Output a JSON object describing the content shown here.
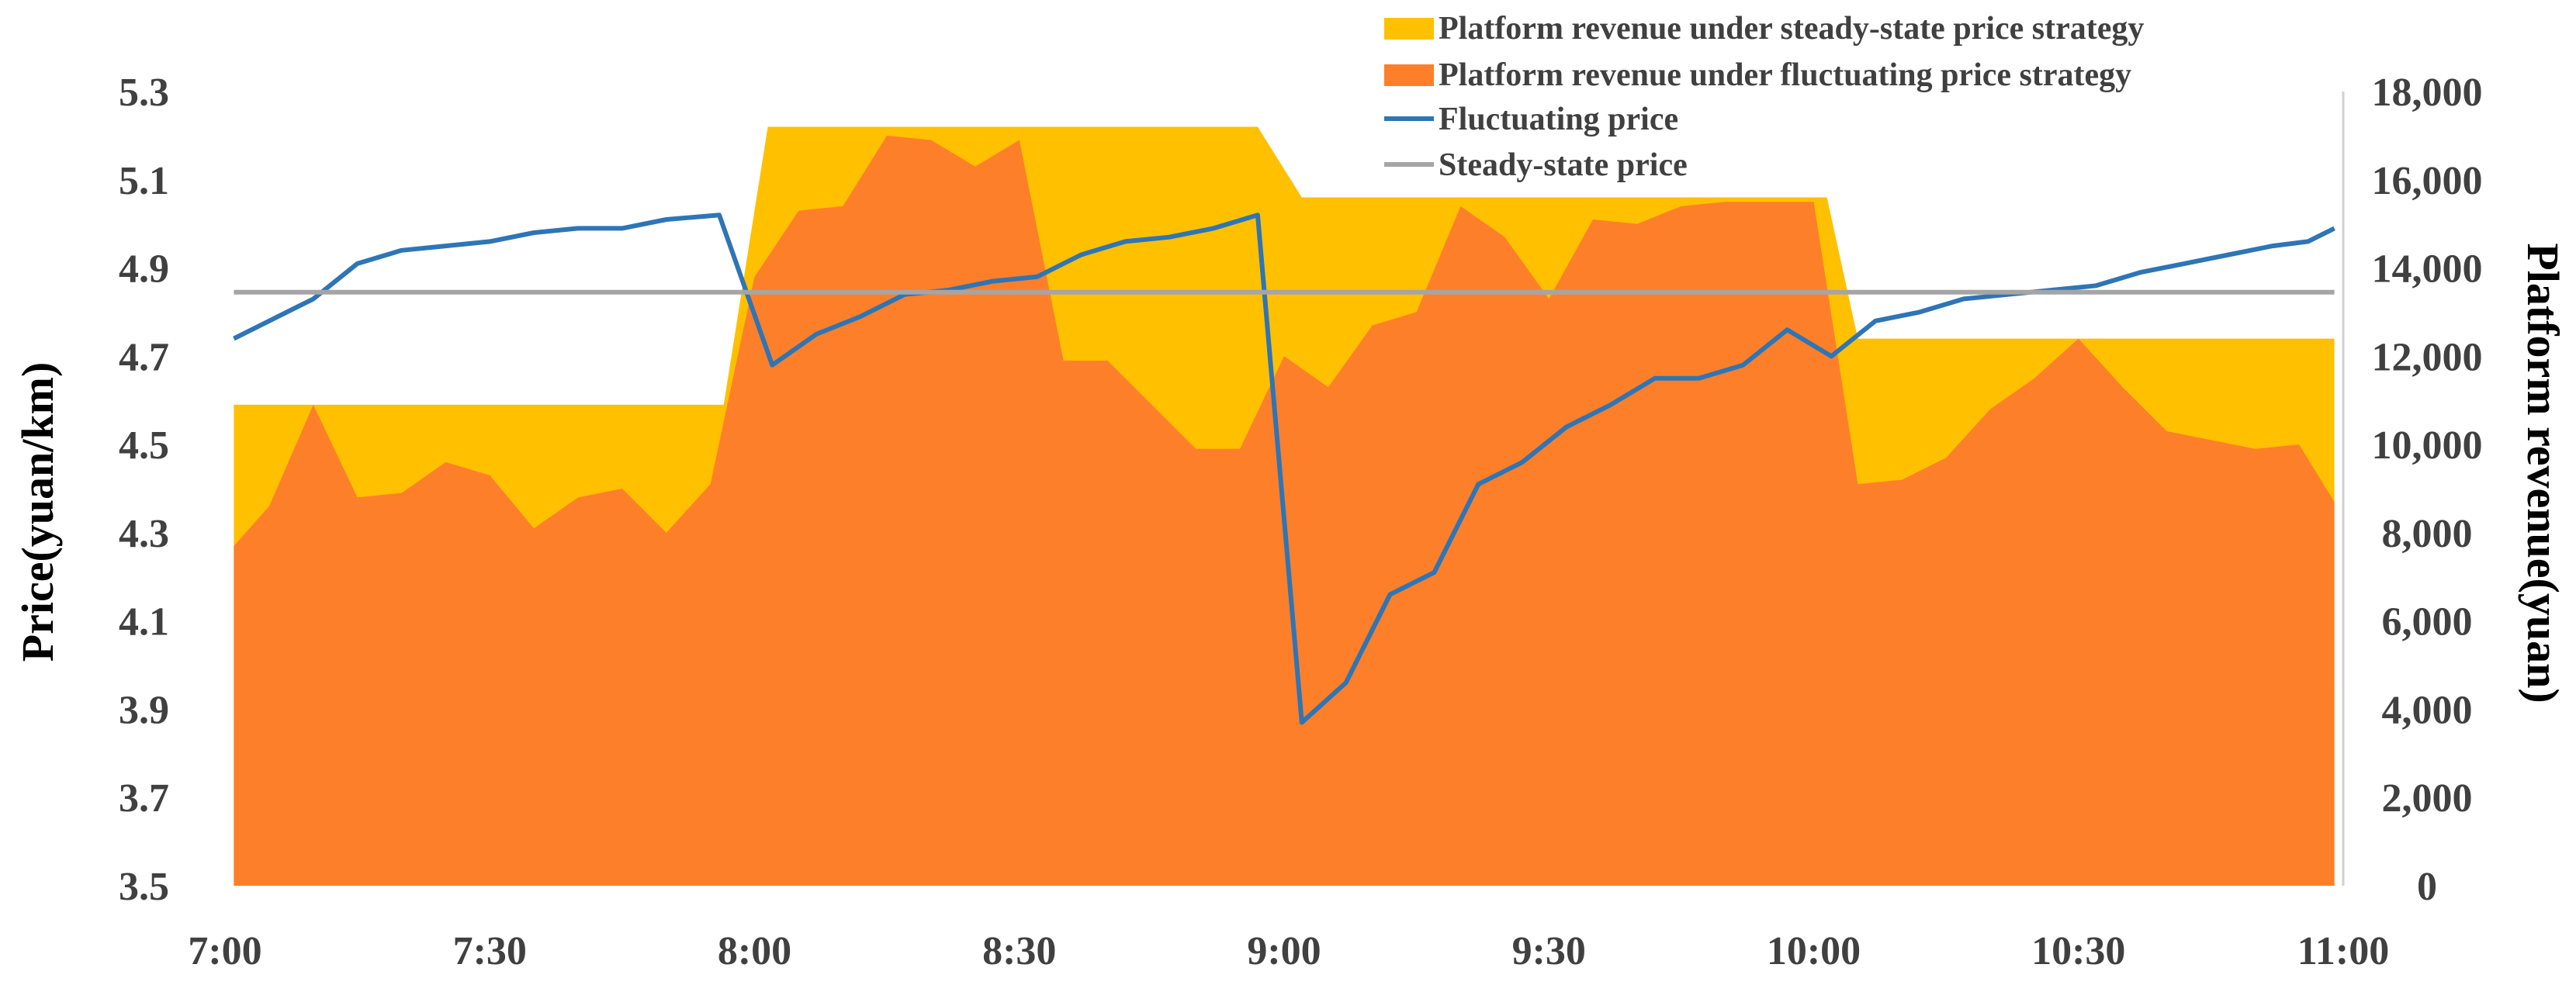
{
  "chart_data": {
    "type": "area",
    "title": "",
    "x": [
      "7:00",
      "7:05",
      "7:10",
      "7:15",
      "7:20",
      "7:25",
      "7:30",
      "7:35",
      "7:40",
      "7:45",
      "7:50",
      "7:55",
      "8:00",
      "8:05",
      "8:10",
      "8:15",
      "8:20",
      "8:25",
      "8:30",
      "8:35",
      "8:40",
      "8:45",
      "8:50",
      "8:55",
      "9:00",
      "9:05",
      "9:10",
      "9:15",
      "9:20",
      "9:25",
      "9:30",
      "9:35",
      "9:40",
      "9:45",
      "9:50",
      "9:55",
      "10:00",
      "10:05",
      "10:10",
      "10:15",
      "10:20",
      "10:25",
      "10:30",
      "10:35",
      "10:40",
      "10:45",
      "10:50",
      "10:55",
      "11:00"
    ],
    "x_ticks": [
      "7:00",
      "7:30",
      "8:00",
      "8:30",
      "9:00",
      "9:30",
      "10:00",
      "10:30",
      "11:00"
    ],
    "x_range_minutes": [
      0,
      240
    ],
    "left_axis": {
      "label": "Price(yuan/km)",
      "ticks": [
        "3.5",
        "3.7",
        "3.9",
        "4.1",
        "4.3",
        "4.5",
        "4.7",
        "4.9",
        "5.1",
        "5.3"
      ],
      "ylim": [
        3.5,
        5.3
      ]
    },
    "right_axis": {
      "label": "Platform revenue(yuan)",
      "ticks": [
        "0",
        "2,000",
        "4,000",
        "6,000",
        "8,000",
        "10,000",
        "12,000",
        "14,000",
        "16,000",
        "18,000"
      ],
      "ylim": [
        0,
        18000
      ]
    },
    "series": [
      {
        "name": "Platform revenue under steady-state price strategy",
        "kind": "area",
        "axis": "right",
        "color": "#FFC000",
        "points": [
          {
            "t": 1,
            "v": 10900
          },
          {
            "t": 56,
            "v": 10900
          },
          {
            "t": 56.5,
            "v": 10900
          },
          {
            "t": 61.5,
            "v": 17200
          },
          {
            "t": 117,
            "v": 17200
          },
          {
            "t": 122,
            "v": 15600
          },
          {
            "t": 181.5,
            "v": 15600
          },
          {
            "t": 185,
            "v": 12400
          },
          {
            "t": 239,
            "v": 12400
          }
        ]
      },
      {
        "name": "Platform revenue under fluctuating price strategy",
        "kind": "area",
        "axis": "right",
        "color": "#FE7F2A",
        "points": [
          {
            "t": 1,
            "v": 7700
          },
          {
            "t": 5,
            "v": 8600
          },
          {
            "t": 10,
            "v": 10900
          },
          {
            "t": 15,
            "v": 8800
          },
          {
            "t": 20,
            "v": 8900
          },
          {
            "t": 25,
            "v": 9600
          },
          {
            "t": 30,
            "v": 9300
          },
          {
            "t": 35,
            "v": 8100
          },
          {
            "t": 40,
            "v": 8800
          },
          {
            "t": 45,
            "v": 9000
          },
          {
            "t": 50,
            "v": 8000
          },
          {
            "t": 55,
            "v": 9100
          },
          {
            "t": 60,
            "v": 13800
          },
          {
            "t": 65,
            "v": 15300
          },
          {
            "t": 70,
            "v": 15400
          },
          {
            "t": 75,
            "v": 17000
          },
          {
            "t": 80,
            "v": 16900
          },
          {
            "t": 85,
            "v": 16300
          },
          {
            "t": 90,
            "v": 16900
          },
          {
            "t": 95,
            "v": 11900
          },
          {
            "t": 100,
            "v": 11900
          },
          {
            "t": 105,
            "v": 10900
          },
          {
            "t": 110,
            "v": 9900
          },
          {
            "t": 115,
            "v": 9900
          },
          {
            "t": 120,
            "v": 12000
          },
          {
            "t": 125,
            "v": 11300
          },
          {
            "t": 130,
            "v": 12700
          },
          {
            "t": 135,
            "v": 13000
          },
          {
            "t": 140,
            "v": 15400
          },
          {
            "t": 145,
            "v": 14700
          },
          {
            "t": 150,
            "v": 13300
          },
          {
            "t": 155,
            "v": 15100
          },
          {
            "t": 160,
            "v": 15000
          },
          {
            "t": 165,
            "v": 15400
          },
          {
            "t": 170,
            "v": 15500
          },
          {
            "t": 175,
            "v": 15500
          },
          {
            "t": 180,
            "v": 15500
          },
          {
            "t": 185,
            "v": 9100
          },
          {
            "t": 190,
            "v": 9200
          },
          {
            "t": 195,
            "v": 9700
          },
          {
            "t": 200,
            "v": 10800
          },
          {
            "t": 205,
            "v": 11500
          },
          {
            "t": 210,
            "v": 12400
          },
          {
            "t": 215,
            "v": 11300
          },
          {
            "t": 220,
            "v": 10300
          },
          {
            "t": 225,
            "v": 10100
          },
          {
            "t": 230,
            "v": 9900
          },
          {
            "t": 235,
            "v": 10000
          },
          {
            "t": 239,
            "v": 8700
          }
        ]
      },
      {
        "name": "Fluctuating price",
        "kind": "line",
        "axis": "left",
        "color": "#2E75B6",
        "points": [
          {
            "t": 1,
            "v": 4.74
          },
          {
            "t": 5,
            "v": 4.78
          },
          {
            "t": 10,
            "v": 4.83
          },
          {
            "t": 15,
            "v": 4.91
          },
          {
            "t": 20,
            "v": 4.94
          },
          {
            "t": 25,
            "v": 4.95
          },
          {
            "t": 30,
            "v": 4.96
          },
          {
            "t": 35,
            "v": 4.98
          },
          {
            "t": 40,
            "v": 4.99
          },
          {
            "t": 45,
            "v": 4.99
          },
          {
            "t": 50,
            "v": 5.01
          },
          {
            "t": 56,
            "v": 5.02
          },
          {
            "t": 62,
            "v": 4.68
          },
          {
            "t": 67,
            "v": 4.75
          },
          {
            "t": 72,
            "v": 4.79
          },
          {
            "t": 77,
            "v": 4.84
          },
          {
            "t": 82,
            "v": 4.85
          },
          {
            "t": 87,
            "v": 4.87
          },
          {
            "t": 92,
            "v": 4.88
          },
          {
            "t": 97,
            "v": 4.93
          },
          {
            "t": 102,
            "v": 4.96
          },
          {
            "t": 107,
            "v": 4.97
          },
          {
            "t": 112,
            "v": 4.99
          },
          {
            "t": 117,
            "v": 5.02
          },
          {
            "t": 122,
            "v": 3.87
          },
          {
            "t": 127,
            "v": 3.96
          },
          {
            "t": 132,
            "v": 4.16
          },
          {
            "t": 137,
            "v": 4.21
          },
          {
            "t": 142,
            "v": 4.41
          },
          {
            "t": 147,
            "v": 4.46
          },
          {
            "t": 152,
            "v": 4.54
          },
          {
            "t": 157,
            "v": 4.59
          },
          {
            "t": 162,
            "v": 4.65
          },
          {
            "t": 167,
            "v": 4.65
          },
          {
            "t": 172,
            "v": 4.68
          },
          {
            "t": 177,
            "v": 4.76
          },
          {
            "t": 182,
            "v": 4.7
          },
          {
            "t": 187,
            "v": 4.78
          },
          {
            "t": 192,
            "v": 4.8
          },
          {
            "t": 197,
            "v": 4.83
          },
          {
            "t": 202,
            "v": 4.84
          },
          {
            "t": 207,
            "v": 4.85
          },
          {
            "t": 212,
            "v": 4.86
          },
          {
            "t": 217,
            "v": 4.89
          },
          {
            "t": 222,
            "v": 4.91
          },
          {
            "t": 227,
            "v": 4.93
          },
          {
            "t": 232,
            "v": 4.95
          },
          {
            "t": 236,
            "v": 4.96
          },
          {
            "t": 239,
            "v": 4.99
          }
        ]
      },
      {
        "name": "Steady-state price",
        "kind": "line",
        "axis": "left",
        "color": "#A5A5A5",
        "points": [
          {
            "t": 1,
            "v": 4.845
          },
          {
            "t": 239,
            "v": 4.845
          }
        ]
      }
    ],
    "legend": {
      "position": "top-right",
      "items": [
        {
          "label": "Platform revenue under steady-state price strategy",
          "swatch": "area",
          "color": "#FFC000"
        },
        {
          "label": "Platform revenue under fluctuating price strategy",
          "swatch": "area",
          "color": "#FE7F2A"
        },
        {
          "label": "Fluctuating price",
          "swatch": "line",
          "color": "#2E75B6"
        },
        {
          "label": "Steady-state price",
          "swatch": "line",
          "color": "#A5A5A5"
        }
      ]
    },
    "grid": false
  }
}
